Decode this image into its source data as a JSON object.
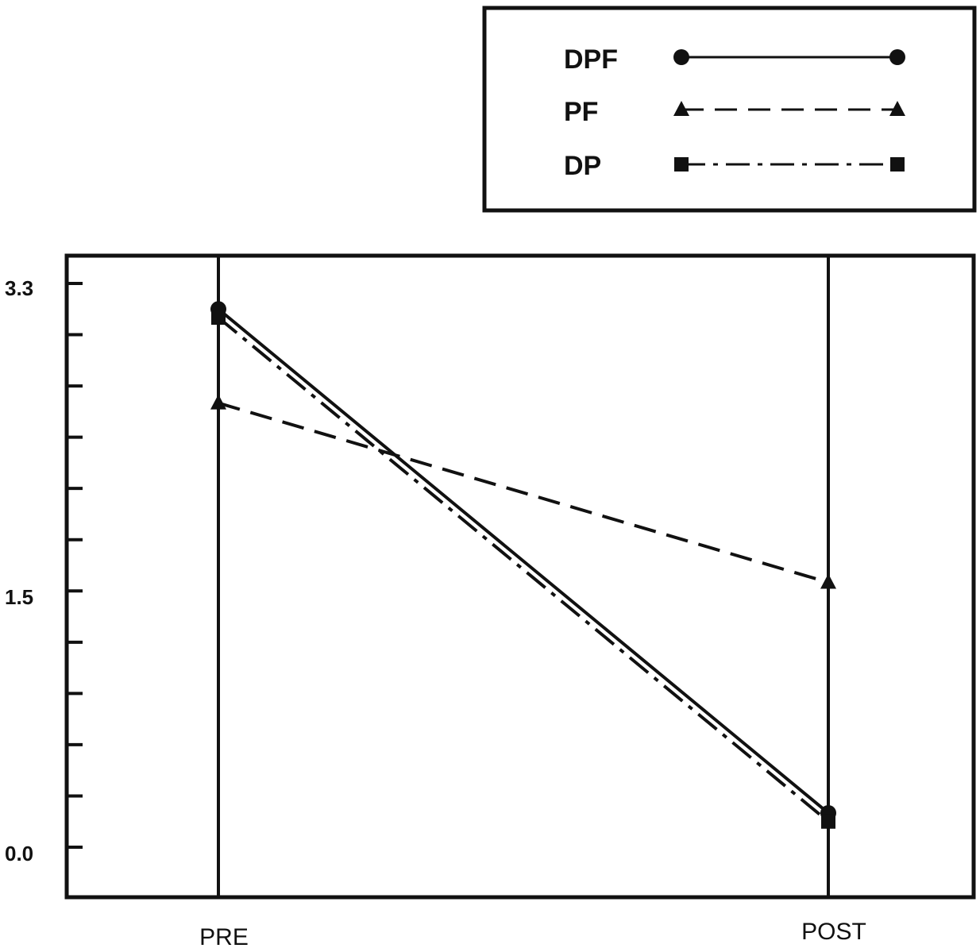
{
  "chart_data": {
    "type": "line",
    "categories": [
      "PRE",
      "POST"
    ],
    "ylim": [
      0.0,
      3.3
    ],
    "ytick_labels": [
      "3.3",
      "1.5",
      "0.0"
    ],
    "yticks": [
      3.3,
      1.5,
      0.0
    ],
    "minor_ticks": [
      0.3,
      0.6,
      0.9,
      1.2,
      1.8,
      2.1,
      2.4,
      2.7,
      3.0
    ],
    "grid": false,
    "legend_position": "top-right",
    "series": [
      {
        "name": "DPF",
        "values": [
          3.15,
          0.2
        ],
        "style": "solid",
        "marker": "circle"
      },
      {
        "name": "PF",
        "values": [
          2.6,
          1.55
        ],
        "style": "dashed",
        "marker": "triangle"
      },
      {
        "name": "DP",
        "values": [
          3.1,
          0.15
        ],
        "style": "dashdot",
        "marker": "square"
      }
    ],
    "colors": {
      "ink": "#111111",
      "background": "#ffffff"
    }
  }
}
